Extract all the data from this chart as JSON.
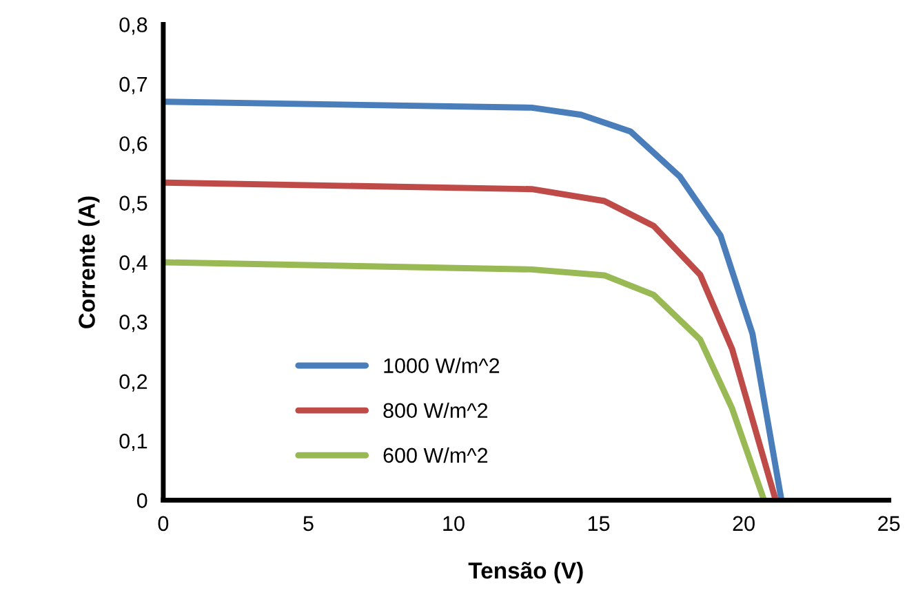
{
  "chart_data": {
    "type": "line",
    "xlabel": "Tensão (V)",
    "ylabel": "Corrente (A)",
    "xlim": [
      0,
      25
    ],
    "xticks": [
      0,
      5,
      10,
      15,
      20,
      25
    ],
    "ylim": [
      0,
      0.8
    ],
    "yticks": [
      0,
      {
        "value": 0.1,
        "label": "0,1"
      },
      {
        "value": 0.2,
        "label": "0,2"
      },
      {
        "value": 0.3,
        "label": "0,3"
      },
      {
        "value": 0.4,
        "label": "0,4"
      },
      {
        "value": 0.5,
        "label": "0,5"
      },
      {
        "value": 0.6,
        "label": "0,6"
      },
      {
        "value": 0.7,
        "label": "0,7"
      },
      {
        "value": 0.8,
        "label": "0,8"
      }
    ],
    "grid": false,
    "legend": "bottom left",
    "marker": "none",
    "line_style": "solid",
    "series": [
      {
        "name": "1000 W/m^2",
        "color": "#4a7ebb",
        "x": [
          0,
          12.7,
          14.4,
          16.1,
          17.8,
          19.2,
          20.3,
          21.3
        ],
        "values": [
          0.67,
          0.66,
          0.648,
          0.62,
          0.544,
          0.445,
          0.28,
          0
        ]
      },
      {
        "name": "800 W/m^2",
        "color": "#be4b48",
        "x": [
          0,
          12.7,
          15.2,
          16.9,
          18.5,
          19.6,
          21.1
        ],
        "values": [
          0.534,
          0.523,
          0.503,
          0.461,
          0.379,
          0.254,
          0
        ]
      },
      {
        "name": "600 W/m^2",
        "color": "#98b954",
        "x": [
          0,
          12.7,
          15.2,
          16.9,
          18.5,
          19.6,
          20.7
        ],
        "values": [
          0.4,
          0.388,
          0.378,
          0.345,
          0.27,
          0.154,
          0
        ]
      }
    ]
  }
}
